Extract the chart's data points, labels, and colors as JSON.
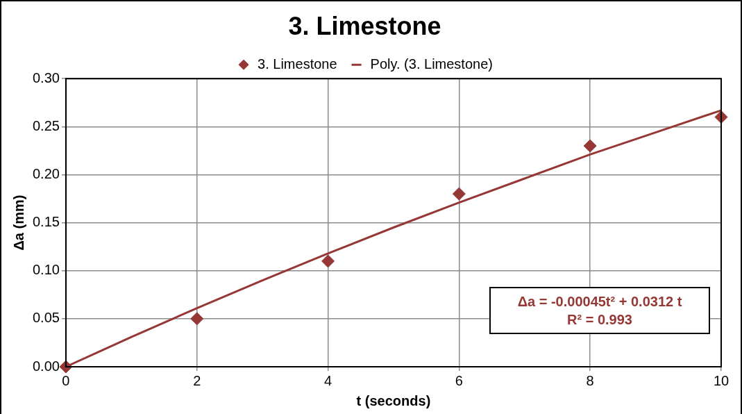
{
  "chart_data": {
    "type": "scatter",
    "title": "3. Limestone",
    "xlabel": "t (seconds)",
    "ylabel": "Δa (mm)",
    "x": [
      0,
      2,
      4,
      6,
      8,
      10
    ],
    "series": [
      {
        "name": "3. Limestone",
        "color": "#953735",
        "marker": "diamond",
        "values": [
          0,
          0.05,
          0.11,
          0.18,
          0.23,
          0.26
        ]
      },
      {
        "name": "Poly. (3. Limestone)",
        "type": "line",
        "color": "#953735",
        "marker": "none",
        "line_style": "solid",
        "x": [
          0,
          1,
          2,
          3,
          4,
          5,
          6,
          7,
          8,
          9,
          10
        ],
        "values": [
          0,
          0.031,
          0.061,
          0.09,
          0.118,
          0.145,
          0.171,
          0.196,
          0.221,
          0.244,
          0.267
        ]
      }
    ],
    "xlim": [
      0,
      10
    ],
    "xticks": [
      0,
      2,
      4,
      6,
      8,
      10
    ],
    "ylim": [
      0,
      0.3
    ],
    "yticks": [
      {
        "value": 0,
        "label": "0.00"
      },
      {
        "value": 0.05,
        "label": "0.05"
      },
      {
        "value": 0.1,
        "label": "0.10"
      },
      {
        "value": 0.15,
        "label": "0.15"
      },
      {
        "value": 0.2,
        "label": "0.20"
      },
      {
        "value": 0.25,
        "label": "0.25"
      },
      {
        "value": 0.3,
        "label": "0.30"
      }
    ],
    "grid": true,
    "legend": "top",
    "annotations": [
      "Δa = -0.00045t² + 0.0312 t",
      "R² = 0.993"
    ]
  }
}
